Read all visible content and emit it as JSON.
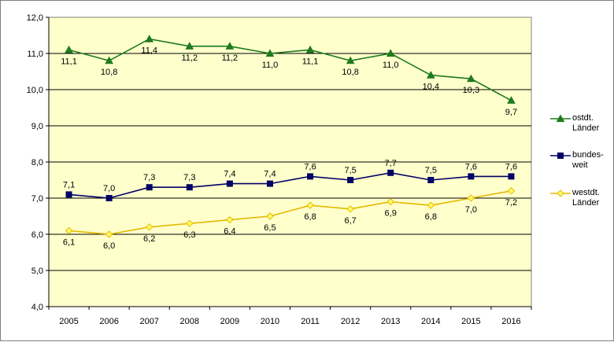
{
  "chart_data": {
    "type": "line",
    "title": "",
    "xlabel": "",
    "ylabel": "",
    "categories": [
      "2005",
      "2006",
      "2007",
      "2008",
      "2009",
      "2010",
      "2011",
      "2012",
      "2013",
      "2014",
      "2015",
      "2016"
    ],
    "ylim": [
      4.0,
      12.0
    ],
    "ytick_values": [
      4.0,
      5.0,
      6.0,
      7.0,
      8.0,
      9.0,
      10.0,
      11.0,
      12.0
    ],
    "ytick_labels": [
      "4,0",
      "5,0",
      "6,0",
      "7,0",
      "8,0",
      "9,0",
      "10,0",
      "11,0",
      "12,0"
    ],
    "grid": true,
    "plot_background": "#ffffcc",
    "legend_position": "right",
    "series": [
      {
        "name_lines": [
          "ostdt.",
          "Länder"
        ],
        "color": "#1e7b1e",
        "marker": "triangle",
        "label_position": "below",
        "values": [
          11.1,
          10.8,
          11.4,
          11.2,
          11.2,
          11.0,
          11.1,
          10.8,
          11.0,
          10.4,
          10.3,
          9.7
        ],
        "labels": [
          "11,1",
          "10,8",
          "11,4",
          "11,2",
          "11,2",
          "11,0",
          "11,1",
          "10,8",
          "11,0",
          "10,4",
          "10,3",
          "9,7"
        ]
      },
      {
        "name_lines": [
          "bundes-",
          "weit"
        ],
        "color": "#000066",
        "marker": "square",
        "label_position": "above",
        "values": [
          7.1,
          7.0,
          7.3,
          7.3,
          7.4,
          7.4,
          7.6,
          7.5,
          7.7,
          7.5,
          7.6,
          7.6
        ],
        "labels": [
          "7,1",
          "7,0",
          "7,3",
          "7,3",
          "7,4",
          "7,4",
          "7,6",
          "7,5",
          "7,7",
          "7,5",
          "7,6",
          "7,6"
        ]
      },
      {
        "name_lines": [
          "westdt.",
          "Länder"
        ],
        "color": "#e6b800",
        "marker": "diamond",
        "label_position": "below",
        "values": [
          6.1,
          6.0,
          6.2,
          6.3,
          6.4,
          6.5,
          6.8,
          6.7,
          6.9,
          6.8,
          7.0,
          7.2
        ],
        "labels": [
          "6,1",
          "6,0",
          "6,2",
          "6,3",
          "6,4",
          "6,5",
          "6,8",
          "6,7",
          "6,9",
          "6,8",
          "7,0",
          "7,2"
        ]
      }
    ]
  }
}
